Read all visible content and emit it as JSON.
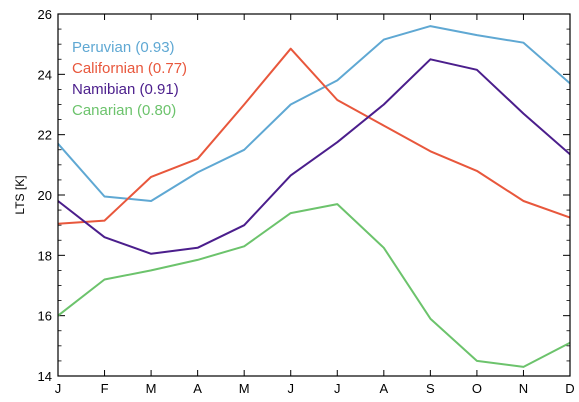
{
  "chart_data": {
    "type": "line",
    "title": "",
    "xlabel": "",
    "ylabel": "LTS [K]",
    "categories": [
      "J",
      "F",
      "M",
      "A",
      "M",
      "J",
      "J",
      "A",
      "S",
      "O",
      "N",
      "D"
    ],
    "ylim": [
      14,
      26
    ],
    "yticks": [
      14,
      16,
      18,
      20,
      22,
      24,
      26
    ],
    "grid": false,
    "legend_position": "top-left",
    "series": [
      {
        "name": "Peruvian",
        "legend_label": "Peruvian (0.93)",
        "color": "#5fa8d3",
        "values": [
          21.7,
          19.95,
          19.8,
          20.75,
          21.5,
          23.0,
          23.8,
          25.15,
          25.6,
          25.3,
          25.05,
          23.7
        ]
      },
      {
        "name": "Californian",
        "legend_label": "Californian (0.77)",
        "color": "#e8573c",
        "values": [
          19.05,
          19.15,
          20.6,
          21.2,
          23.0,
          24.85,
          23.15,
          22.3,
          21.45,
          20.8,
          19.8,
          19.25
        ]
      },
      {
        "name": "Namibian",
        "legend_label": "Namibian (0.91)",
        "color": "#4b1e8c",
        "values": [
          19.8,
          18.6,
          18.05,
          18.25,
          19.0,
          20.65,
          21.75,
          23.0,
          24.5,
          24.15,
          22.7,
          21.35
        ]
      },
      {
        "name": "Canarian",
        "legend_label": "Canarian (0.80)",
        "color": "#6cc36c",
        "values": [
          16.0,
          17.2,
          17.5,
          17.85,
          18.3,
          19.4,
          19.7,
          18.25,
          15.9,
          14.5,
          14.3,
          15.1
        ]
      }
    ]
  }
}
